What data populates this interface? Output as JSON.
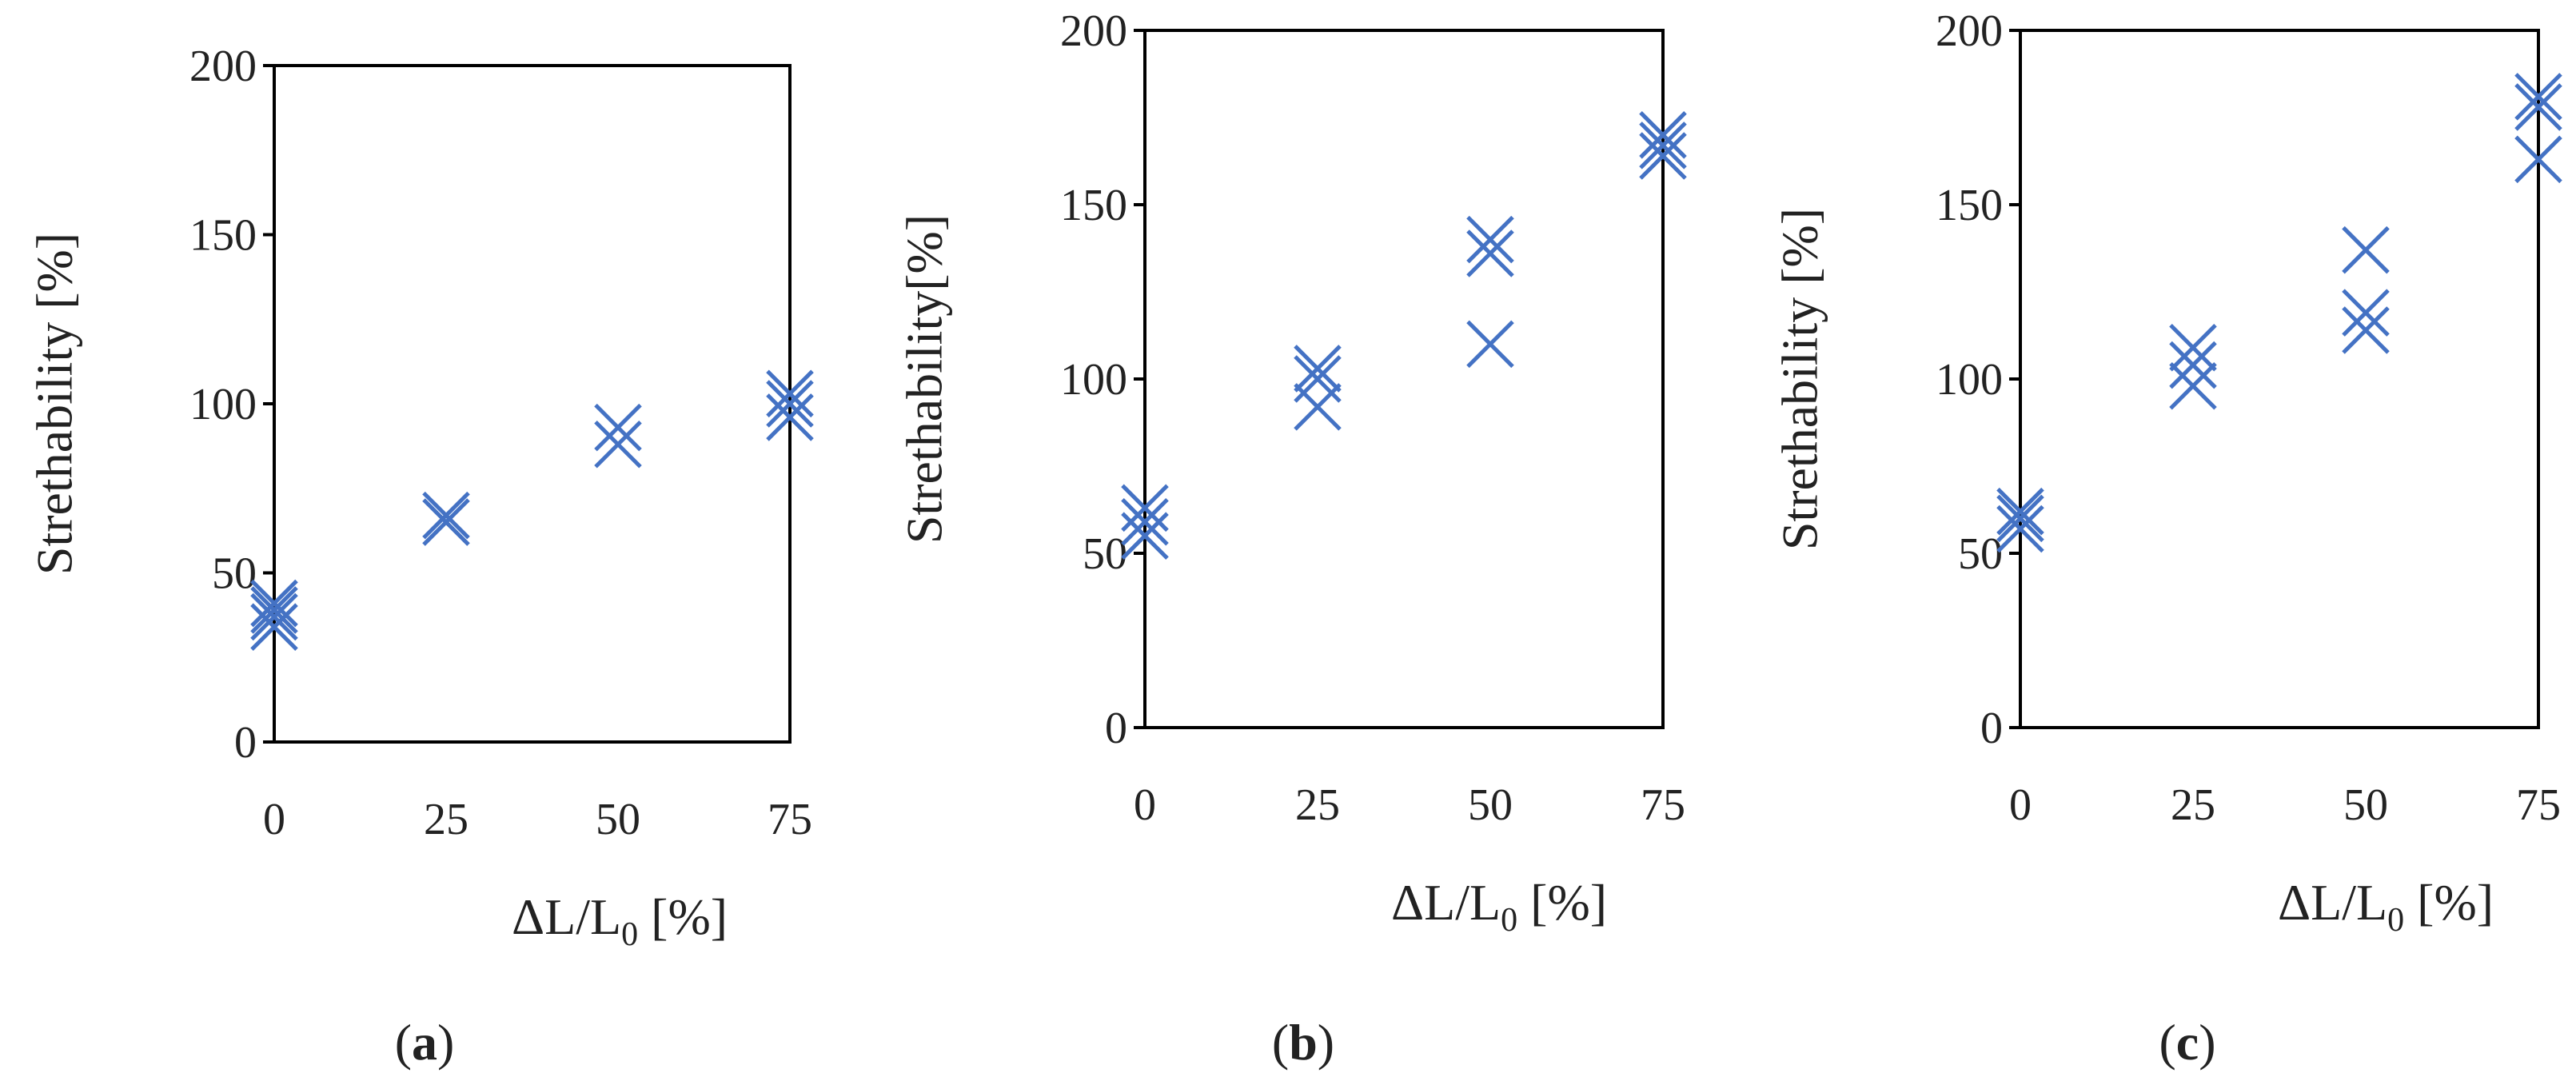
{
  "accent_color": "#4472c4",
  "chart_data": [
    {
      "type": "scatter",
      "panel": "a",
      "caption_open": "(",
      "caption_letter": "a",
      "caption_close": ")",
      "ylabel": "Strethability [%]",
      "xlabel_main": "ΔL/L",
      "xlabel_sub": "0",
      "xlabel_tail": " [%]",
      "x_ticks": [
        0,
        25,
        50,
        75
      ],
      "y_ticks": [
        0,
        50,
        100,
        150,
        200
      ],
      "xlim": [
        0,
        75
      ],
      "ylim": [
        0,
        200
      ],
      "x": [
        0,
        0,
        0,
        0,
        25,
        25,
        50,
        50,
        75,
        75,
        75
      ],
      "y": [
        34,
        37,
        39,
        41,
        65,
        67,
        88,
        93,
        96,
        100,
        103
      ]
    },
    {
      "type": "scatter",
      "panel": "b",
      "caption_open": "(",
      "caption_letter": "b",
      "caption_close": ")",
      "ylabel": "Strethability[%]",
      "xlabel_main": "ΔL/L",
      "xlabel_sub": "0",
      "xlabel_tail": " [%]",
      "x_ticks": [
        0,
        25,
        50,
        75
      ],
      "y_ticks": [
        0,
        50,
        100,
        150,
        200
      ],
      "xlim": [
        0,
        75
      ],
      "ylim": [
        0,
        200
      ],
      "x": [
        0,
        0,
        0,
        25,
        25,
        25,
        50,
        50,
        50,
        75,
        75,
        75
      ],
      "y": [
        55,
        59,
        63,
        92,
        100,
        103,
        110,
        136,
        140,
        164,
        167,
        170
      ]
    },
    {
      "type": "scatter",
      "panel": "c",
      "caption_open": "(",
      "caption_letter": "c",
      "caption_close": ")",
      "ylabel": "Strethability [%]",
      "xlabel_main": "ΔL/L",
      "xlabel_sub": "0",
      "xlabel_tail": " [%]",
      "x_ticks": [
        0,
        25,
        50,
        75
      ],
      "y_ticks": [
        0,
        50,
        100,
        150,
        200
      ],
      "xlim": [
        0,
        75
      ],
      "ylim": [
        0,
        200
      ],
      "x": [
        0,
        0,
        0,
        25,
        25,
        25,
        50,
        50,
        50,
        75,
        75,
        75
      ],
      "y": [
        57,
        60,
        62,
        98,
        104,
        109,
        114,
        119,
        137,
        163,
        178,
        181
      ]
    }
  ]
}
